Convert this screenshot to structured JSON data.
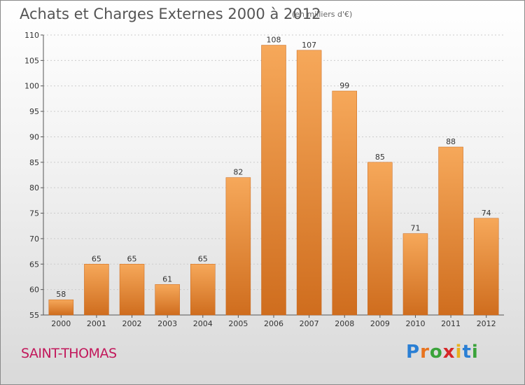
{
  "title": "Achats et Charges Externes 2000 à 2012",
  "unit_note": "(en milliers d'€)",
  "commune": "SAINT-THOMAS",
  "logo": {
    "text": "Proxiti",
    "colors": [
      "#2a7fd4",
      "#e8731e",
      "#3aa33a",
      "#d62728",
      "#e8b21e",
      "#2a7fd4",
      "#3aa33a"
    ]
  },
  "colors": {
    "bar": "#f0963c",
    "bar_dark": "#c8661a",
    "grid": "#cccccc"
  },
  "chart_data": {
    "type": "bar",
    "categories": [
      "2000",
      "2001",
      "2002",
      "2003",
      "2004",
      "2005",
      "2006",
      "2007",
      "2008",
      "2009",
      "2010",
      "2011",
      "2012"
    ],
    "values": [
      58,
      65,
      65,
      61,
      65,
      82,
      108,
      107,
      99,
      85,
      71,
      88,
      74
    ],
    "title": "Achats et Charges Externes 2000 à 2012",
    "ylim": [
      55,
      110
    ],
    "yticks": [
      55,
      60,
      65,
      70,
      75,
      80,
      85,
      90,
      95,
      100,
      105,
      110
    ],
    "grid": true
  }
}
